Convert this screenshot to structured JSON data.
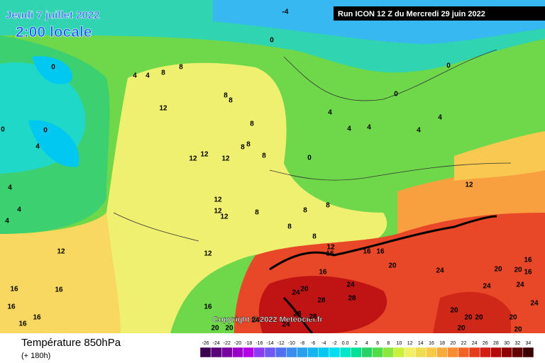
{
  "header": {
    "date": "Jeudi 7 juillet 2022",
    "time": "2:00 locale",
    "run": "Run ICON 12 Z du Mercredi 29 juin 2022"
  },
  "copyright": "Copyright © 2022 Meteociel.fr",
  "footer": {
    "title": "Température 850hPa",
    "lead": "(+ 180h)"
  },
  "legend": {
    "labels": [
      "-26",
      "-24",
      "-22",
      "-20",
      "-18",
      "-16",
      "-14",
      "-12",
      "-10",
      "-8",
      "-6",
      "-4",
      "-2",
      "0.0",
      "2",
      "4",
      "6",
      "8",
      "10",
      "12",
      "14",
      "16",
      "18",
      "20",
      "22",
      "24",
      "26",
      "28",
      "30",
      "32",
      "34"
    ],
    "colors": [
      "#3c0050",
      "#5a0078",
      "#7a00a0",
      "#9a00c8",
      "#b400e6",
      "#8c3cf0",
      "#6e5af0",
      "#5070f0",
      "#3c8cf0",
      "#28a0f0",
      "#14b4f0",
      "#00c8f0",
      "#00dcf0",
      "#00e6c8",
      "#00e096",
      "#28d264",
      "#50dc46",
      "#8ce63c",
      "#c8f03c",
      "#f0f064",
      "#f0dc50",
      "#f8c846",
      "#f8aa3c",
      "#f88c32",
      "#f06428",
      "#e63c1e",
      "#d21e14",
      "#b40a0a",
      "#8c0000",
      "#640000",
      "#3c0000"
    ]
  },
  "map": {
    "contour_labels": [
      -4,
      0,
      0,
      4,
      4,
      8,
      8,
      12,
      8,
      8,
      8,
      8,
      8,
      8,
      12,
      12,
      12,
      0,
      4,
      0,
      4,
      4,
      4,
      0,
      4,
      4,
      0,
      0,
      12,
      12,
      12,
      12,
      12,
      12,
      8,
      8,
      8,
      8,
      8,
      12,
      16,
      16,
      16,
      20,
      16,
      24,
      24,
      28,
      20,
      24,
      28,
      28,
      16,
      16,
      20,
      24,
      24,
      20,
      20,
      20,
      20,
      20,
      20,
      20,
      24,
      16,
      16,
      16,
      16,
      16,
      16,
      20,
      20,
      24,
      24,
      28,
      4,
      4,
      4
    ]
  }
}
